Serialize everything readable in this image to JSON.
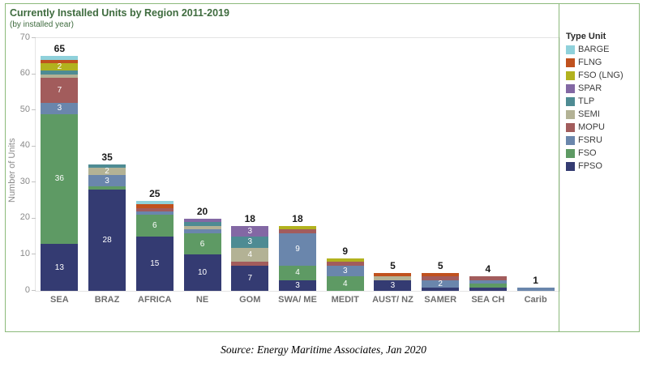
{
  "title": "Currently Installed Units by Region 2011-2019",
  "subtitle": "(by installed year)",
  "source_note": "Source: Energy Maritime Associates, Jan 2020",
  "legend": {
    "title": "Type Unit",
    "order_top_to_bottom": [
      "BARGE",
      "FLNG",
      "FSO (LNG)",
      "SPAR",
      "TLP",
      "SEMI",
      "MOPU",
      "FSRU",
      "FSO",
      "FPSO"
    ]
  },
  "colors": {
    "panel_border": "#8CBA7B",
    "title_text": "#3E6B3E",
    "axis_text": "#8A8A8A",
    "category_text": "#6E6E6E"
  },
  "chart_data": {
    "type": "bar",
    "stacked": true,
    "title": "Currently Installed Units by Region 2011-2019",
    "subtitle": "(by installed year)",
    "xlabel": "",
    "ylabel": "Number of Units",
    "ylim": [
      0,
      70
    ],
    "yticks": [
      0,
      10,
      20,
      30,
      40,
      50,
      60,
      70
    ],
    "grid": false,
    "legend_position": "right",
    "categories": [
      "SEA",
      "BRAZ",
      "AFRICA",
      "NE",
      "GOM",
      "SWA/ ME",
      "MEDIT",
      "AUST/ NZ",
      "SAMER",
      "SEA CH",
      "Carib"
    ],
    "totals": [
      65,
      35,
      25,
      20,
      18,
      18,
      9,
      5,
      5,
      4,
      1
    ],
    "series": [
      {
        "name": "FPSO",
        "color": "#343B72",
        "values": [
          13,
          28,
          15,
          10,
          7,
          3,
          0,
          3,
          1,
          1,
          0
        ]
      },
      {
        "name": "FSO",
        "color": "#5E9A64",
        "values": [
          36,
          1,
          6,
          6,
          0,
          4,
          4,
          0,
          0,
          1,
          0
        ]
      },
      {
        "name": "FSRU",
        "color": "#6A86AC",
        "values": [
          3,
          3,
          1,
          1,
          0,
          9,
          3,
          0,
          2,
          1,
          1
        ]
      },
      {
        "name": "MOPU",
        "color": "#A25C5C",
        "values": [
          7,
          0,
          1,
          0,
          1,
          1,
          1,
          0,
          1,
          1,
          0
        ]
      },
      {
        "name": "SEMI",
        "color": "#B3B295",
        "values": [
          1,
          2,
          0,
          1,
          4,
          0,
          0,
          1,
          0,
          0,
          0
        ]
      },
      {
        "name": "TLP",
        "color": "#4E8B93",
        "values": [
          1,
          1,
          0,
          1,
          3,
          0,
          0,
          0,
          0,
          0,
          0
        ]
      },
      {
        "name": "SPAR",
        "color": "#8368A4",
        "values": [
          0,
          0,
          0,
          1,
          3,
          0,
          0,
          0,
          0,
          0,
          0
        ]
      },
      {
        "name": "FSO (LNG)",
        "color": "#B2B21E",
        "values": [
          2,
          0,
          0,
          0,
          0,
          1,
          1,
          0,
          0,
          0,
          0
        ]
      },
      {
        "name": "FLNG",
        "color": "#C0511E",
        "values": [
          1,
          0,
          1,
          0,
          0,
          0,
          0,
          1,
          1,
          0,
          0
        ]
      },
      {
        "name": "BARGE",
        "color": "#8FD1DB",
        "values": [
          1,
          0,
          1,
          0,
          0,
          0,
          0,
          0,
          0,
          0,
          0
        ]
      }
    ]
  }
}
